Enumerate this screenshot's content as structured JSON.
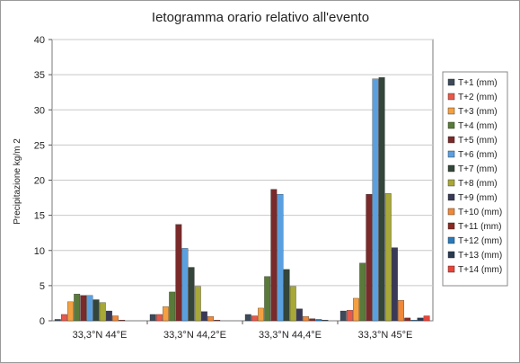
{
  "chart_data": {
    "type": "bar",
    "title": "Ietogramma orario relativo all'evento",
    "xlabel": "",
    "ylabel": "Precipitazione kg/m 2",
    "ylim": [
      0,
      40
    ],
    "yticks": [
      0,
      5,
      10,
      15,
      20,
      25,
      30,
      35,
      40
    ],
    "grid": true,
    "legend_position": "right",
    "categories": [
      "33,3°N 44°E",
      "33,3°N 44,2°E",
      "33,3°N 44,4°E",
      "33,3°N 45°E"
    ],
    "series": [
      {
        "name": "T+1 (mm)",
        "color": "#3c4a5a",
        "values": [
          0.2,
          0.9,
          0.9,
          1.4
        ]
      },
      {
        "name": "T+2 (mm)",
        "color": "#e8594a",
        "values": [
          0.9,
          0.9,
          0.7,
          1.5
        ]
      },
      {
        "name": "T+3 (mm)",
        "color": "#f4a040",
        "values": [
          2.7,
          2.0,
          1.8,
          3.2
        ]
      },
      {
        "name": "T+4 (mm)",
        "color": "#5a7a3a",
        "values": [
          3.8,
          4.1,
          6.3,
          8.2
        ]
      },
      {
        "name": "T+5 (mm)",
        "color": "#7a2a2a",
        "values": [
          3.6,
          13.7,
          18.7,
          18.0
        ]
      },
      {
        "name": "T+6 (mm)",
        "color": "#5aa0e0",
        "values": [
          3.6,
          10.3,
          18.0,
          34.4
        ]
      },
      {
        "name": "T+7 (mm)",
        "color": "#34453a",
        "values": [
          3.0,
          7.6,
          7.3,
          34.6
        ]
      },
      {
        "name": "T+8 (mm)",
        "color": "#a8a838",
        "values": [
          2.6,
          4.9,
          4.9,
          18.1
        ]
      },
      {
        "name": "T+9 (mm)",
        "color": "#3a3a58",
        "values": [
          1.4,
          1.3,
          1.7,
          10.4
        ]
      },
      {
        "name": "T+10 (mm)",
        "color": "#f08838",
        "values": [
          0.7,
          0.6,
          0.6,
          2.9
        ]
      },
      {
        "name": "T+11 (mm)",
        "color": "#8a2a22",
        "values": [
          0.1,
          0.1,
          0.3,
          0.4
        ]
      },
      {
        "name": "T+12 (mm)",
        "color": "#2a7aba",
        "values": [
          0.0,
          0.0,
          0.2,
          0.1
        ]
      },
      {
        "name": "T+13 (mm)",
        "color": "#2a3a52",
        "values": [
          0.0,
          0.0,
          0.1,
          0.4
        ]
      },
      {
        "name": "T+14 (mm)",
        "color": "#e8443a",
        "values": [
          0.0,
          0.0,
          0.0,
          0.7
        ]
      }
    ]
  }
}
